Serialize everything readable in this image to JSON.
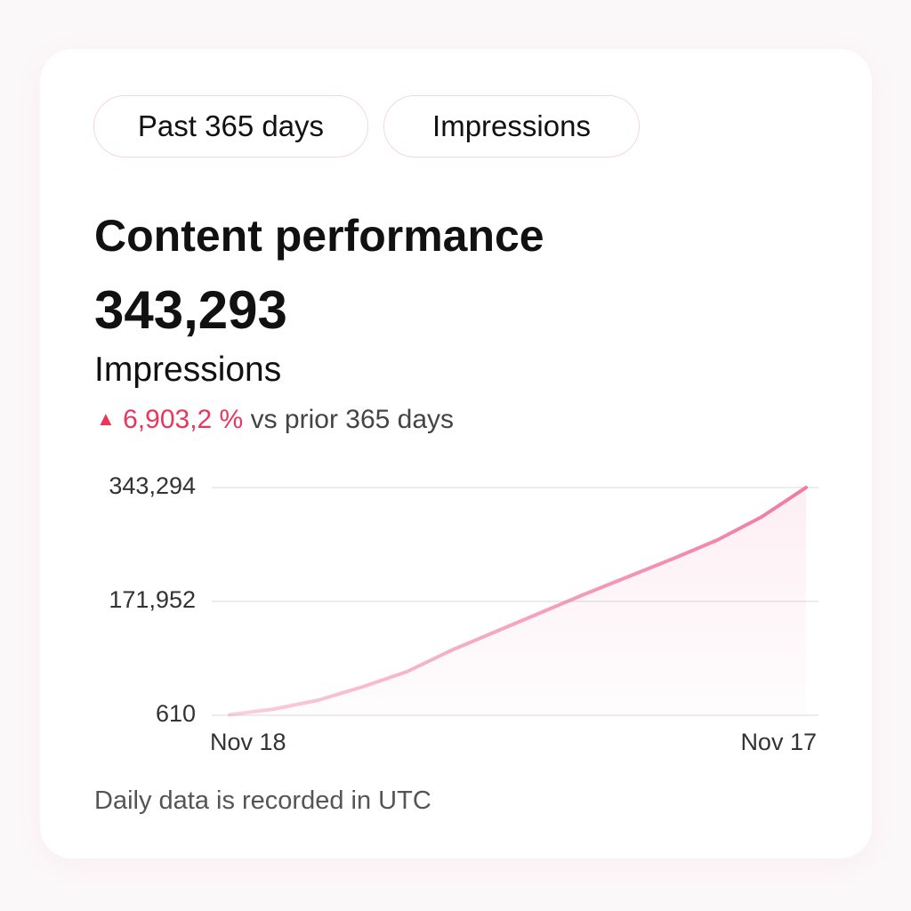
{
  "filters": [
    "Past 365 days",
    "Impressions"
  ],
  "header": {
    "title": "Content performance",
    "total": "343,293",
    "metric": "Impressions",
    "change": "6,903,2 %",
    "comparison": "vs prior 365 days"
  },
  "chart_data": {
    "type": "line",
    "categories": [
      "Nov 18",
      null,
      null,
      null,
      null,
      null,
      null,
      null,
      null,
      null,
      null,
      null,
      null,
      "Nov 17"
    ],
    "values": [
      1500,
      9983,
      23369,
      43448,
      66204,
      98330,
      126440,
      154551,
      182662,
      209435,
      236207,
      264318,
      299122,
      343294
    ],
    "color": "#f07aa4",
    "ylim": [
      610,
      343294
    ],
    "yticks": [
      {
        "value": 343294,
        "label": "343,294"
      },
      {
        "value": 171952,
        "label": "171,952"
      },
      610
    ],
    "grid": true
  },
  "footer": "Daily data is recorded in UTC"
}
